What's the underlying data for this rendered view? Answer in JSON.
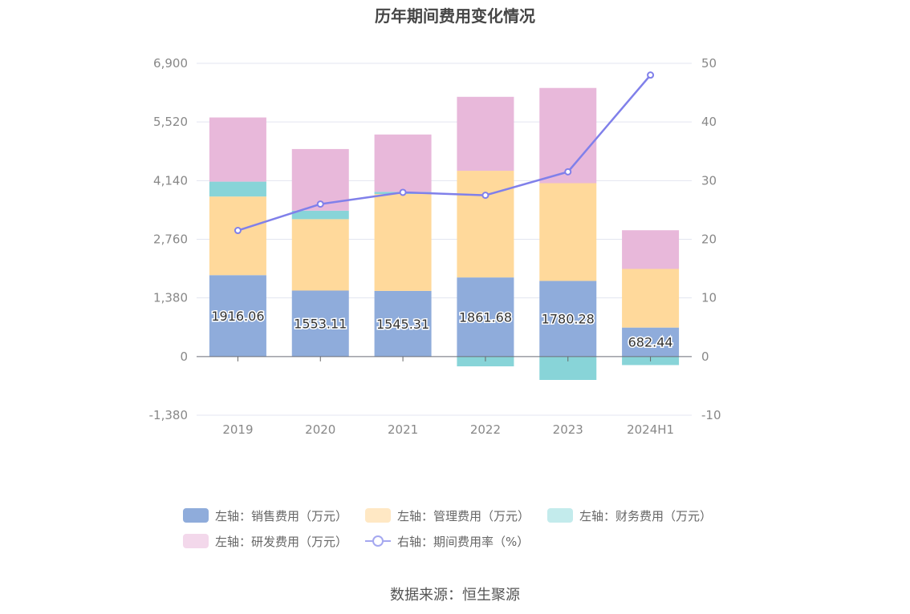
{
  "chart_data": {
    "type": "bar",
    "title": "历年期间费用变化情况",
    "categories": [
      "2019",
      "2020",
      "2021",
      "2022",
      "2023",
      "2024H1"
    ],
    "y_left": {
      "ticks": [
        "6,900",
        "5,520",
        "4,140",
        "2,760",
        "1,380",
        "0",
        "-1,380"
      ],
      "ylim": [
        -1380,
        6900
      ]
    },
    "y_right": {
      "ticks": [
        "50",
        "40",
        "30",
        "20",
        "10",
        "0",
        "-10"
      ],
      "ylim": [
        -10,
        50
      ]
    },
    "series": [
      {
        "name": "左轴：销售费用（万元）",
        "type": "bar",
        "axis": "left",
        "color": "#8facdb",
        "values": [
          1916.06,
          1553.11,
          1545.31,
          1861.68,
          1780.28,
          682.44
        ],
        "labels": [
          "1916.06",
          "1553.11",
          "1545.31",
          "1861.68",
          "1780.28",
          "682.44"
        ]
      },
      {
        "name": "左轴：管理费用（万元）",
        "type": "bar",
        "axis": "left",
        "color": "#ffd99b",
        "values": [
          1850,
          1680,
          2280,
          2510,
          2300,
          1380
        ]
      },
      {
        "name": "左轴：财务费用（万元）",
        "type": "bar",
        "axis": "left",
        "color": "#88d4d8",
        "values": [
          350,
          200,
          50,
          -230,
          -550,
          -200
        ]
      },
      {
        "name": "左轴：研发费用（万元）",
        "type": "bar",
        "axis": "left",
        "color": "#e8b8da",
        "values": [
          1510,
          1450,
          1350,
          1740,
          2240,
          910
        ]
      },
      {
        "name": "右轴：期间费用率（%）",
        "type": "line",
        "axis": "right",
        "color": "#8080ea",
        "values": [
          21.5,
          26,
          28,
          27.5,
          31.5,
          48
        ]
      }
    ],
    "legend_position": "bottom",
    "grid": true
  },
  "source": "数据来源：恒生聚源"
}
